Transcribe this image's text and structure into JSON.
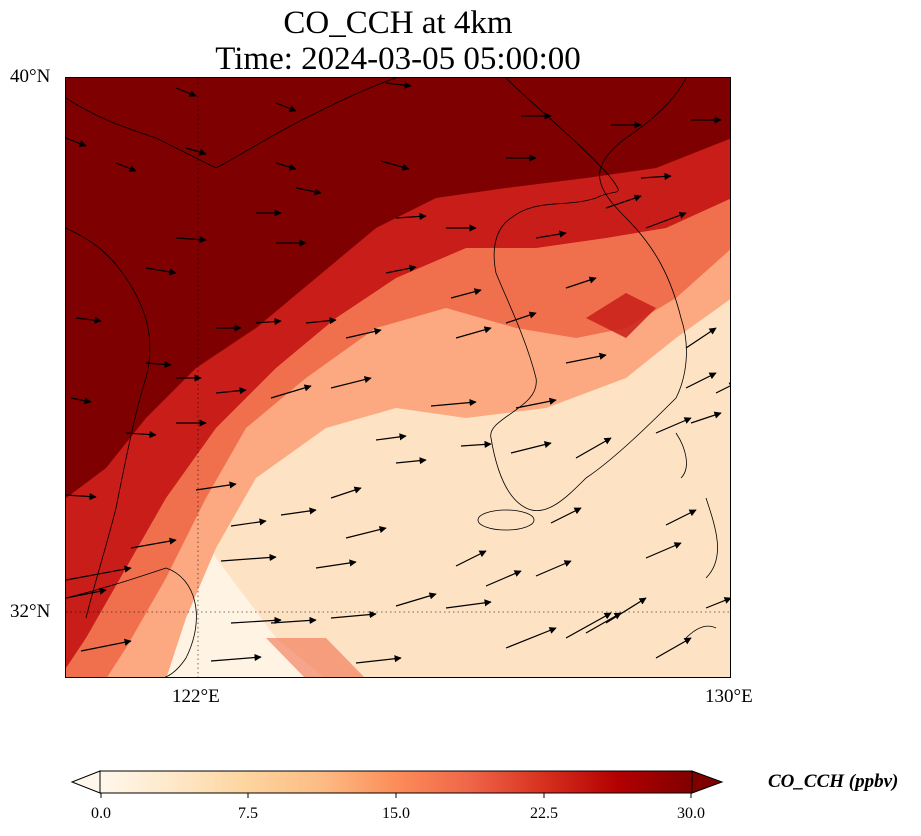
{
  "title_line1": "CO_CCH at 4km",
  "title_line2": "Time: 2024-03-05 05:00:00",
  "map": {
    "lat_labels": [
      "40°N",
      "32°N"
    ],
    "lon_labels": [
      "122°E",
      "130°E"
    ],
    "gridline_style": "dotted"
  },
  "colorbar": {
    "label": "CO_CCH (ppbv)",
    "ticks": [
      "0.0",
      "7.5",
      "15.0",
      "22.5",
      "30.0"
    ],
    "extend": "both",
    "colormap": "OrRd",
    "colors": [
      "#fff7ec",
      "#fee8c8",
      "#fdd49e",
      "#fdbb84",
      "#fc8d59",
      "#ef6548",
      "#d7301f",
      "#b30000",
      "#7f0000"
    ]
  },
  "field": {
    "description_colors": {
      "high": "#7f0000",
      "mid_high": "#c81d18",
      "mid": "#f0704e",
      "low_mid": "#fca981",
      "low": "#fde2c4",
      "lowest": "#fff3e3"
    }
  }
}
